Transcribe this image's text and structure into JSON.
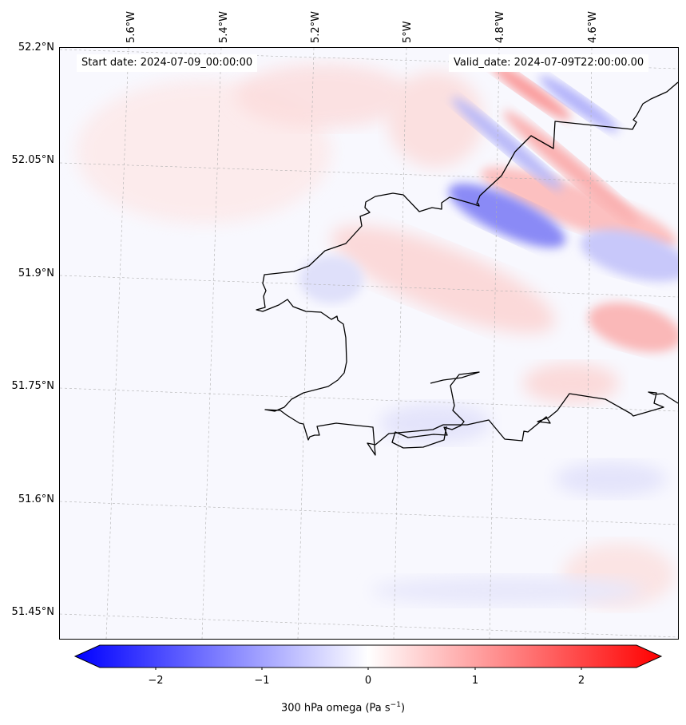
{
  "start_date": "Start date: 2024-07-09_00:00:00",
  "valid_date": "Valid_date: 2024-07-09T22:00:00.00",
  "lon_ticks": [
    "5.6°W",
    "5.4°W",
    "5.2°W",
    "5°W",
    "4.8°W",
    "4.6°W"
  ],
  "lat_ticks": [
    "52.2°N",
    "52.05°N",
    "51.9°N",
    "51.75°N",
    "51.6°N",
    "51.45°N"
  ],
  "colorbar": {
    "ticks": [
      "−2",
      "−1",
      "0",
      "1",
      "2"
    ],
    "label_text": "300 hPa omega (Pa s",
    "label_exp": "−1",
    "label_close": ")",
    "min": -2.75,
    "max": 2.75,
    "colors": {
      "negative": "#0000ff",
      "zero": "#ffffff",
      "positive": "#ff0000"
    }
  },
  "colors": {
    "coastline": "#000000",
    "gridline": "#b0b0b0"
  }
}
